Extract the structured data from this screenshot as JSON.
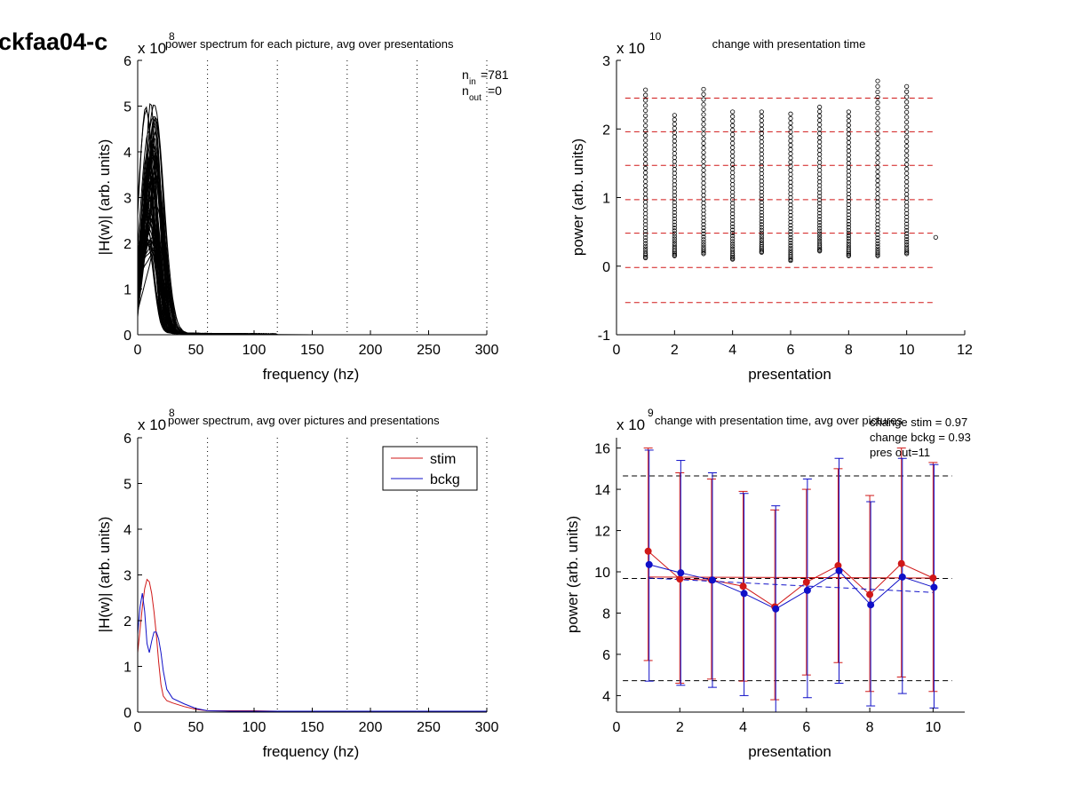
{
  "page": {
    "figure_id": "ckfaa04-c"
  },
  "colors": {
    "stim": "#d01818",
    "bckg": "#1010c8",
    "ref_line": "#d01818",
    "axis": "#000000"
  },
  "chart_data": [
    {
      "id": "tl",
      "type": "line",
      "title": "power spectrum for each picture, avg over presentations",
      "xlabel": "frequency (hz)",
      "ylabel": "|H(w)| (arb. units)",
      "exponent_label": "x 10",
      "exponent": "8",
      "xlim": [
        0,
        300
      ],
      "ylim": [
        0,
        6
      ],
      "xticks": [
        "0",
        "50",
        "100",
        "150",
        "200",
        "250",
        "300"
      ],
      "yticks": [
        "0",
        "1",
        "2",
        "3",
        "4",
        "5",
        "6"
      ],
      "vlines": [
        60,
        120,
        180,
        240,
        300
      ],
      "annotations": {
        "n_in_label": "n",
        "n_in_sub": "in",
        "n_in_value": "=781",
        "n_out_label": "n",
        "n_out_sub": "out",
        "n_out_value": "=0"
      },
      "series_count": 60,
      "peak_range": [
        1.8,
        5.1
      ]
    },
    {
      "id": "tr",
      "type": "scatter",
      "title": "change with presentation time",
      "xlabel": "presentation",
      "ylabel": "power (arb. units)",
      "exponent_label": "x 10",
      "exponent": "10",
      "xlim": [
        0,
        12
      ],
      "ylim": [
        -1,
        3
      ],
      "xticks": [
        "0",
        "2",
        "4",
        "6",
        "8",
        "10",
        "12"
      ],
      "yticks": [
        "-1",
        "0",
        "1",
        "2",
        "3"
      ],
      "hlines": [
        2.45,
        1.96,
        1.47,
        0.97,
        0.48,
        -0.02,
        -0.53
      ],
      "columns": [
        {
          "x": 1,
          "min": 0.12,
          "max": 2.57
        },
        {
          "x": 2,
          "min": 0.15,
          "max": 2.2
        },
        {
          "x": 3,
          "min": 0.18,
          "max": 2.58
        },
        {
          "x": 4,
          "min": 0.1,
          "max": 2.25
        },
        {
          "x": 5,
          "min": 0.2,
          "max": 2.25
        },
        {
          "x": 6,
          "min": 0.08,
          "max": 2.22
        },
        {
          "x": 7,
          "min": 0.22,
          "max": 2.32
        },
        {
          "x": 8,
          "min": 0.15,
          "max": 2.25
        },
        {
          "x": 9,
          "min": 0.15,
          "max": 2.7
        },
        {
          "x": 10,
          "min": 0.18,
          "max": 2.62
        },
        {
          "x": 11,
          "min": 0.42,
          "max": 0.42
        }
      ]
    },
    {
      "id": "bl",
      "type": "line",
      "title": "power spectrum, avg over pictures and presentations",
      "xlabel": "frequency (hz)",
      "ylabel": "|H(w)| (arb. units)",
      "exponent_label": "x 10",
      "exponent": "8",
      "xlim": [
        0,
        300
      ],
      "ylim": [
        0,
        6
      ],
      "xticks": [
        "0",
        "50",
        "100",
        "150",
        "200",
        "250",
        "300"
      ],
      "yticks": [
        "0",
        "1",
        "2",
        "3",
        "4",
        "5",
        "6"
      ],
      "vlines": [
        60,
        120,
        180,
        240,
        300
      ],
      "legend": {
        "placement": "top-right",
        "entries": [
          "stim",
          "bckg"
        ]
      },
      "series": [
        {
          "name": "stim",
          "x": [
            0,
            2,
            4,
            6,
            8,
            10,
            12,
            14,
            16,
            18,
            20,
            22,
            25,
            30,
            40,
            50,
            60,
            80,
            100,
            120,
            150,
            200,
            250,
            300
          ],
          "values": [
            1.3,
            1.8,
            2.3,
            2.7,
            2.9,
            2.85,
            2.6,
            2.2,
            1.7,
            1.1,
            0.6,
            0.35,
            0.25,
            0.2,
            0.12,
            0.06,
            0.03,
            0.03,
            0.03,
            0.02,
            0.02,
            0.02,
            0.02,
            0.02
          ]
        },
        {
          "name": "bckg",
          "x": [
            0,
            2,
            4,
            6,
            8,
            10,
            12,
            14,
            16,
            18,
            20,
            22,
            25,
            30,
            40,
            50,
            60,
            80,
            100,
            120,
            150,
            200,
            250,
            300
          ],
          "values": [
            1.7,
            2.3,
            2.6,
            2.2,
            1.5,
            1.3,
            1.55,
            1.75,
            1.75,
            1.6,
            1.3,
            0.9,
            0.5,
            0.3,
            0.18,
            0.08,
            0.03,
            0.02,
            0.02,
            0.02,
            0.02,
            0.02,
            0.02,
            0.02
          ]
        }
      ]
    },
    {
      "id": "br",
      "type": "line",
      "title": "change with presentation time, avg over pictures",
      "xlabel": "presentation",
      "ylabel": "power (arb. units)",
      "exponent_label": "x 10",
      "exponent": "9",
      "xlim": [
        0,
        11
      ],
      "ylim": [
        3.2,
        16.5
      ],
      "xticks": [
        "0",
        "2",
        "4",
        "6",
        "8",
        "10"
      ],
      "yticks": [
        "4",
        "6",
        "8",
        "10",
        "12",
        "14",
        "16"
      ],
      "annotations": [
        "change stim = 0.97",
        "change bckg = 0.93",
        "pres out=11"
      ],
      "hlines": [
        14.65,
        9.68,
        4.72
      ],
      "x": [
        1,
        2,
        3,
        4,
        5,
        6,
        7,
        8,
        9,
        10
      ],
      "series": [
        {
          "name": "stim",
          "values": [
            11.0,
            9.65,
            9.6,
            9.3,
            8.3,
            9.5,
            10.3,
            8.9,
            10.4,
            9.7
          ],
          "err_low": [
            5.7,
            4.6,
            4.8,
            4.7,
            3.8,
            5.0,
            5.6,
            4.2,
            4.9,
            4.2
          ],
          "err_high": [
            16.0,
            14.8,
            14.5,
            13.9,
            13.0,
            14.0,
            15.0,
            13.7,
            16.0,
            15.3
          ],
          "trend": [
            9.75,
            9.7
          ]
        },
        {
          "name": "bckg",
          "values": [
            10.35,
            9.95,
            9.6,
            8.95,
            8.2,
            9.1,
            10.05,
            8.4,
            9.75,
            9.25
          ],
          "err_low": [
            4.7,
            4.5,
            4.4,
            4.0,
            3.2,
            3.9,
            4.6,
            3.5,
            4.1,
            3.4
          ],
          "err_high": [
            15.9,
            15.4,
            14.8,
            13.8,
            13.2,
            14.5,
            15.5,
            13.4,
            15.5,
            15.2
          ],
          "trend": [
            9.7,
            9.0
          ]
        }
      ]
    }
  ]
}
